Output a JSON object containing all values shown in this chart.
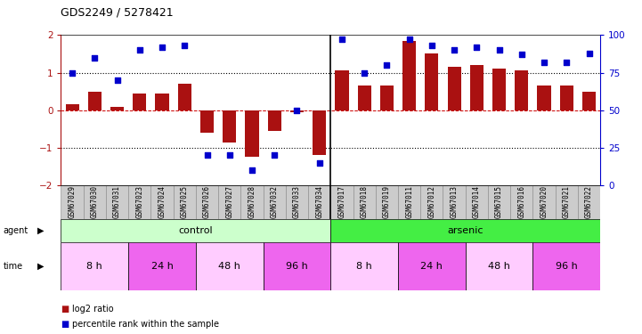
{
  "title": "GDS2249 / 5278421",
  "samples": [
    "GSM67029",
    "GSM67030",
    "GSM67031",
    "GSM67023",
    "GSM67024",
    "GSM67025",
    "GSM67026",
    "GSM67027",
    "GSM67028",
    "GSM67032",
    "GSM67033",
    "GSM67034",
    "GSM67017",
    "GSM67018",
    "GSM67019",
    "GSM67011",
    "GSM67012",
    "GSM67013",
    "GSM67014",
    "GSM67015",
    "GSM67016",
    "GSM67020",
    "GSM67021",
    "GSM67022"
  ],
  "log2_ratio": [
    0.15,
    0.5,
    0.1,
    0.45,
    0.45,
    0.7,
    -0.6,
    -0.85,
    -1.25,
    -0.55,
    -0.05,
    -1.2,
    1.05,
    0.65,
    0.65,
    1.85,
    1.5,
    1.15,
    1.2,
    1.1,
    1.05,
    0.65,
    0.65,
    0.5
  ],
  "percentile": [
    75,
    85,
    70,
    90,
    92,
    93,
    20,
    20,
    10,
    20,
    50,
    15,
    97,
    75,
    80,
    97,
    93,
    90,
    92,
    90,
    87,
    82,
    82,
    88
  ],
  "bar_color": "#aa1111",
  "dot_color": "#0000cc",
  "ylim": [
    -2,
    2
  ],
  "y2lim": [
    0,
    100
  ],
  "yticks": [
    -2,
    -1,
    0,
    1,
    2
  ],
  "y2ticks": [
    0,
    25,
    50,
    75,
    100
  ],
  "dotted_lines": [
    -1,
    1
  ],
  "zero_line_color": "#cc0000",
  "agent_groups": [
    {
      "label": "control",
      "start": 0,
      "end": 12,
      "color": "#ccffcc"
    },
    {
      "label": "arsenic",
      "start": 12,
      "end": 24,
      "color": "#44ee44"
    }
  ],
  "time_groups": [
    {
      "label": "8 h",
      "start": 0,
      "end": 3,
      "color": "#ffccff"
    },
    {
      "label": "24 h",
      "start": 3,
      "end": 6,
      "color": "#ee66ee"
    },
    {
      "label": "48 h",
      "start": 6,
      "end": 9,
      "color": "#ffccff"
    },
    {
      "label": "96 h",
      "start": 9,
      "end": 12,
      "color": "#ee66ee"
    },
    {
      "label": "8 h",
      "start": 12,
      "end": 15,
      "color": "#ffccff"
    },
    {
      "label": "24 h",
      "start": 15,
      "end": 18,
      "color": "#ee66ee"
    },
    {
      "label": "48 h",
      "start": 18,
      "end": 21,
      "color": "#ffccff"
    },
    {
      "label": "96 h",
      "start": 21,
      "end": 24,
      "color": "#ee66ee"
    }
  ],
  "legend_items": [
    {
      "color": "#aa1111",
      "label": "log2 ratio"
    },
    {
      "color": "#0000cc",
      "label": "percentile rank within the sample"
    }
  ],
  "background_color": "#ffffff",
  "bar_width": 0.6,
  "separator_idx": 11.5
}
